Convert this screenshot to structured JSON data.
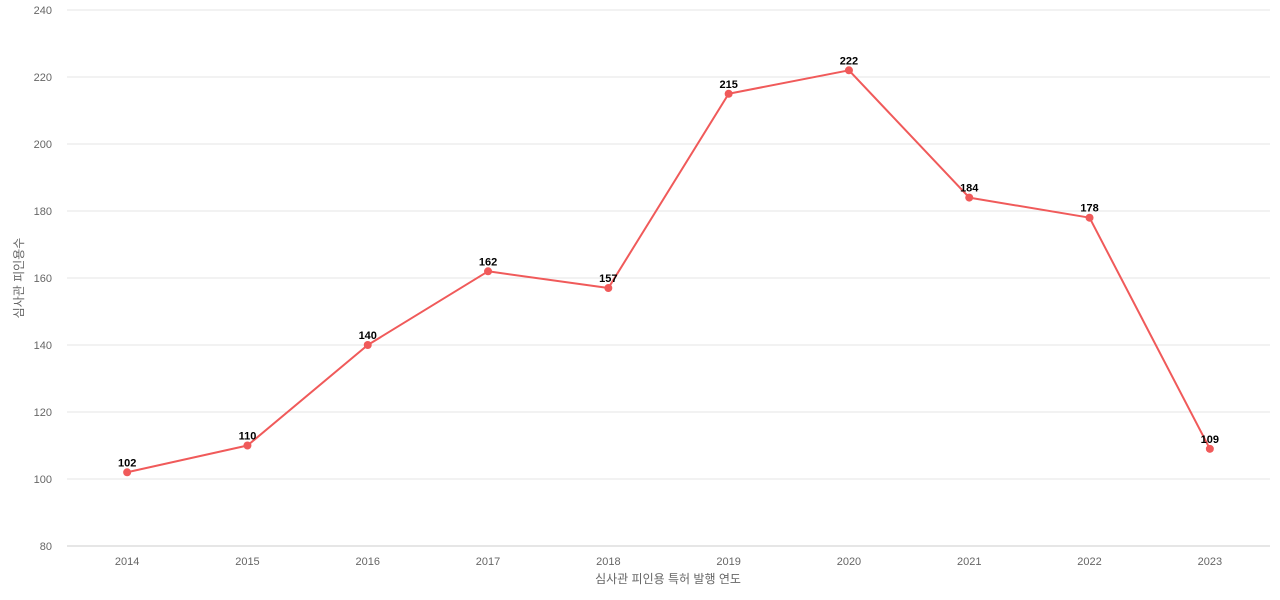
{
  "chart_data": {
    "type": "line",
    "title": "",
    "xlabel": "심사관 피인용 특허 발행 연도",
    "ylabel": "심사관 피인용수",
    "categories": [
      "2014",
      "2015",
      "2016",
      "2017",
      "2018",
      "2019",
      "2020",
      "2021",
      "2022",
      "2023"
    ],
    "series": [
      {
        "values": [
          102,
          110,
          140,
          162,
          157,
          215,
          222,
          184,
          178,
          109
        ],
        "color": "#f05a5a"
      }
    ],
    "ylim": [
      80,
      240
    ],
    "yticks": [
      80,
      100,
      120,
      140,
      160,
      180,
      200,
      220,
      240
    ],
    "grid": true,
    "legend": "none",
    "data_labels": true
  }
}
